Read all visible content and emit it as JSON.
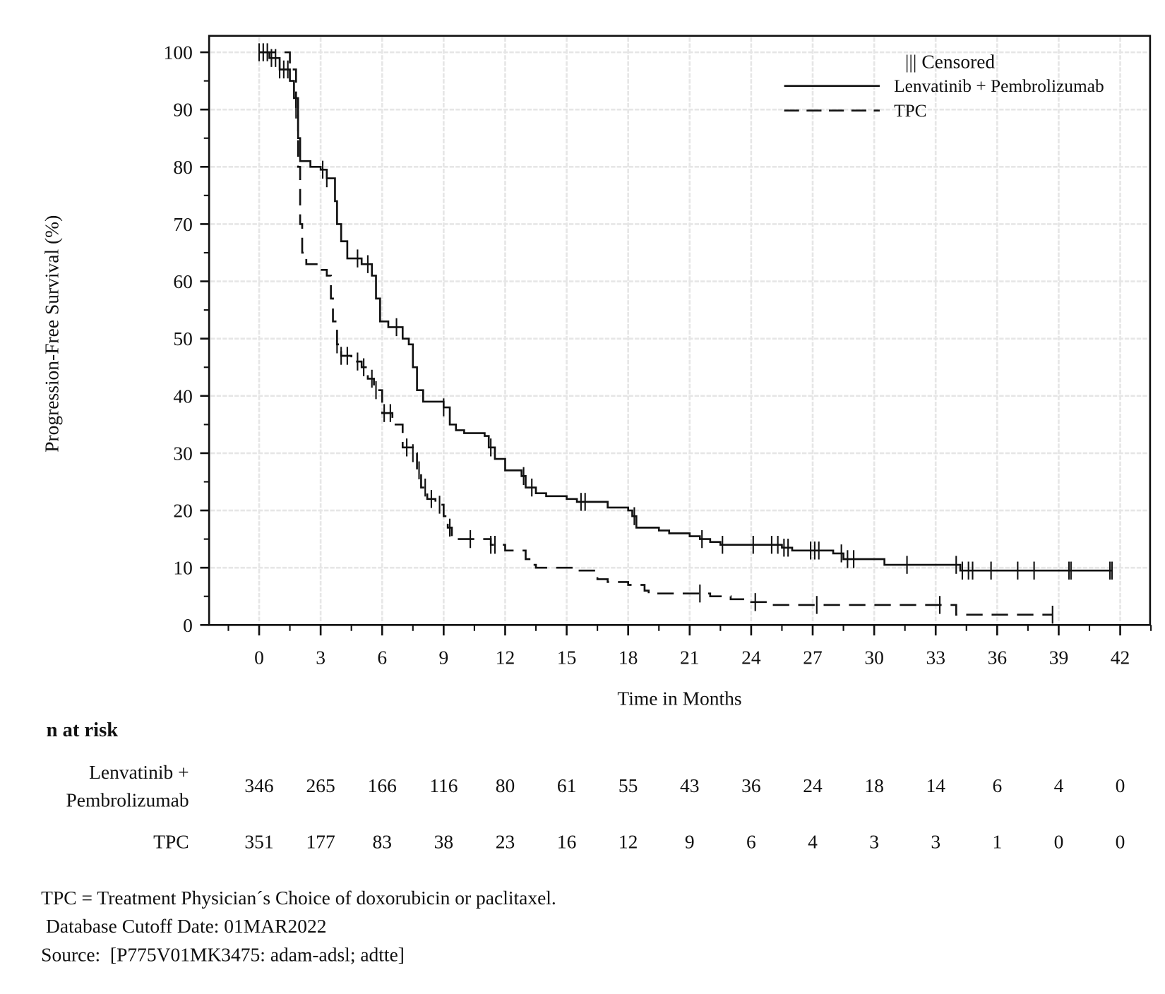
{
  "chart_data": {
    "type": "line",
    "subtype": "kaplan-meier step",
    "xlabel": "Time in Months",
    "ylabel": "Progression-Free Survival (%)",
    "xlim": [
      0,
      42
    ],
    "ylim": [
      0,
      100
    ],
    "x_ticks": [
      0,
      3,
      6,
      9,
      12,
      15,
      18,
      21,
      24,
      27,
      30,
      33,
      36,
      39,
      42
    ],
    "y_ticks": [
      0,
      10,
      20,
      30,
      40,
      50,
      60,
      70,
      80,
      90,
      100
    ],
    "grid": true,
    "legend_position": "top-right",
    "legend": {
      "censored_label": "||| Censored",
      "entries": [
        "Lenvatinib + Pembrolizumab",
        "TPC"
      ]
    },
    "series": [
      {
        "name": "Lenvatinib + Pembrolizumab",
        "line_style": "solid",
        "color": "#111111",
        "points": [
          [
            0,
            100
          ],
          [
            0.5,
            99
          ],
          [
            1,
            97
          ],
          [
            1.5,
            95
          ],
          [
            1.7,
            92
          ],
          [
            1.9,
            85
          ],
          [
            2,
            81
          ],
          [
            2.5,
            80
          ],
          [
            3,
            79.5
          ],
          [
            3.3,
            78
          ],
          [
            3.7,
            74
          ],
          [
            3.8,
            70
          ],
          [
            4,
            67
          ],
          [
            4.3,
            64
          ],
          [
            5,
            63
          ],
          [
            5.5,
            61
          ],
          [
            5.7,
            57
          ],
          [
            5.9,
            53
          ],
          [
            6.3,
            52
          ],
          [
            7,
            50
          ],
          [
            7.3,
            49
          ],
          [
            7.5,
            45
          ],
          [
            7.7,
            41
          ],
          [
            8,
            39
          ],
          [
            9,
            38
          ],
          [
            9.3,
            35
          ],
          [
            9.6,
            34
          ],
          [
            10,
            33.5
          ],
          [
            11,
            33
          ],
          [
            11.2,
            31
          ],
          [
            11.5,
            29
          ],
          [
            12,
            27
          ],
          [
            12.8,
            26
          ],
          [
            13,
            24
          ],
          [
            13.5,
            23
          ],
          [
            14,
            22.5
          ],
          [
            15,
            22
          ],
          [
            15.5,
            21.5
          ],
          [
            17,
            20.5
          ],
          [
            18,
            20
          ],
          [
            18.2,
            19
          ],
          [
            18.4,
            17
          ],
          [
            19.5,
            16.5
          ],
          [
            20,
            16
          ],
          [
            21,
            15.5
          ],
          [
            21.5,
            15
          ],
          [
            22,
            14.5
          ],
          [
            22.5,
            14
          ],
          [
            25.5,
            13.5
          ],
          [
            26,
            13
          ],
          [
            27.5,
            13
          ],
          [
            28,
            12.5
          ],
          [
            28.5,
            11.5
          ],
          [
            30.2,
            11.5
          ],
          [
            30.5,
            10.5
          ],
          [
            34.1,
            10.5
          ],
          [
            34.2,
            9.5
          ],
          [
            41.6,
            9.5
          ]
        ],
        "censored": [
          0,
          0.2,
          0.4,
          0.6,
          0.8,
          1.0,
          1.2,
          1.4,
          3.1,
          3.3,
          4.8,
          5.3,
          6.7,
          9.0,
          11.3,
          12.9,
          13.3,
          15.7,
          15.9,
          18.3,
          21.6,
          22.6,
          24.1,
          25.0,
          25.3,
          25.6,
          25.8,
          26.9,
          27.1,
          27.3,
          28.4,
          28.7,
          29.0,
          31.6,
          34.0,
          34.3,
          34.6,
          34.8,
          35.7,
          37.0,
          37.8,
          39.5,
          39.6,
          41.5,
          41.6
        ]
      },
      {
        "name": "TPC",
        "line_style": "dashed",
        "color": "#111111",
        "points": [
          [
            0,
            100
          ],
          [
            1.5,
            97
          ],
          [
            1.8,
            90
          ],
          [
            1.9,
            80
          ],
          [
            2,
            70
          ],
          [
            2.1,
            65
          ],
          [
            2.3,
            63
          ],
          [
            3,
            62
          ],
          [
            3.3,
            61
          ],
          [
            3.5,
            57
          ],
          [
            3.6,
            53
          ],
          [
            3.8,
            49
          ],
          [
            4,
            47
          ],
          [
            4.5,
            46
          ],
          [
            5,
            45
          ],
          [
            5.3,
            43
          ],
          [
            5.6,
            41
          ],
          [
            6,
            37
          ],
          [
            6.5,
            35
          ],
          [
            7,
            31
          ],
          [
            7.5,
            30
          ],
          [
            7.7,
            27
          ],
          [
            7.9,
            24
          ],
          [
            8.2,
            22
          ],
          [
            8.6,
            21
          ],
          [
            9,
            19
          ],
          [
            9.2,
            17
          ],
          [
            9.4,
            15
          ],
          [
            11,
            15
          ],
          [
            11.3,
            14
          ],
          [
            12,
            13
          ],
          [
            13,
            11.5
          ],
          [
            13.3,
            10.5
          ],
          [
            13.5,
            10
          ],
          [
            15,
            10
          ],
          [
            15.3,
            9.5
          ],
          [
            16.5,
            8
          ],
          [
            17,
            7.5
          ],
          [
            18,
            7
          ],
          [
            18.8,
            6
          ],
          [
            19,
            5.5
          ],
          [
            21,
            5.5
          ],
          [
            22,
            5
          ],
          [
            23,
            4.5
          ],
          [
            24,
            4
          ],
          [
            25,
            3.5
          ],
          [
            33.5,
            3.5
          ],
          [
            34,
            1.8
          ],
          [
            38.7,
            1.8
          ]
        ],
        "censored": [
          1.8,
          3.8,
          4.0,
          4.3,
          4.8,
          5.1,
          5.5,
          5.7,
          6.1,
          6.4,
          7.2,
          7.5,
          7.8,
          8.1,
          8.4,
          8.8,
          9.3,
          10.3,
          11.3,
          11.5,
          21.5,
          24.2,
          27.2,
          33.2,
          38.7
        ]
      }
    ],
    "risk_table": {
      "title": "n at risk",
      "times": [
        0,
        3,
        6,
        9,
        12,
        15,
        18,
        21,
        24,
        27,
        30,
        33,
        36,
        39,
        42
      ],
      "rows": [
        {
          "label_lines": [
            "Lenvatinib +",
            "Pembrolizumab"
          ],
          "values": [
            346,
            265,
            166,
            116,
            80,
            61,
            55,
            43,
            36,
            24,
            18,
            14,
            6,
            4,
            0
          ]
        },
        {
          "label_lines": [
            "TPC"
          ],
          "values": [
            351,
            177,
            83,
            38,
            23,
            16,
            12,
            9,
            6,
            4,
            3,
            3,
            1,
            0,
            0
          ]
        }
      ]
    }
  },
  "footnotes": [
    "TPC = Treatment Physician´s Choice of doxorubicin or paclitaxel.",
    " Database Cutoff Date: 01MAR2022",
    "Source:  [P775V01MK3475: adam-adsl; adtte]"
  ]
}
